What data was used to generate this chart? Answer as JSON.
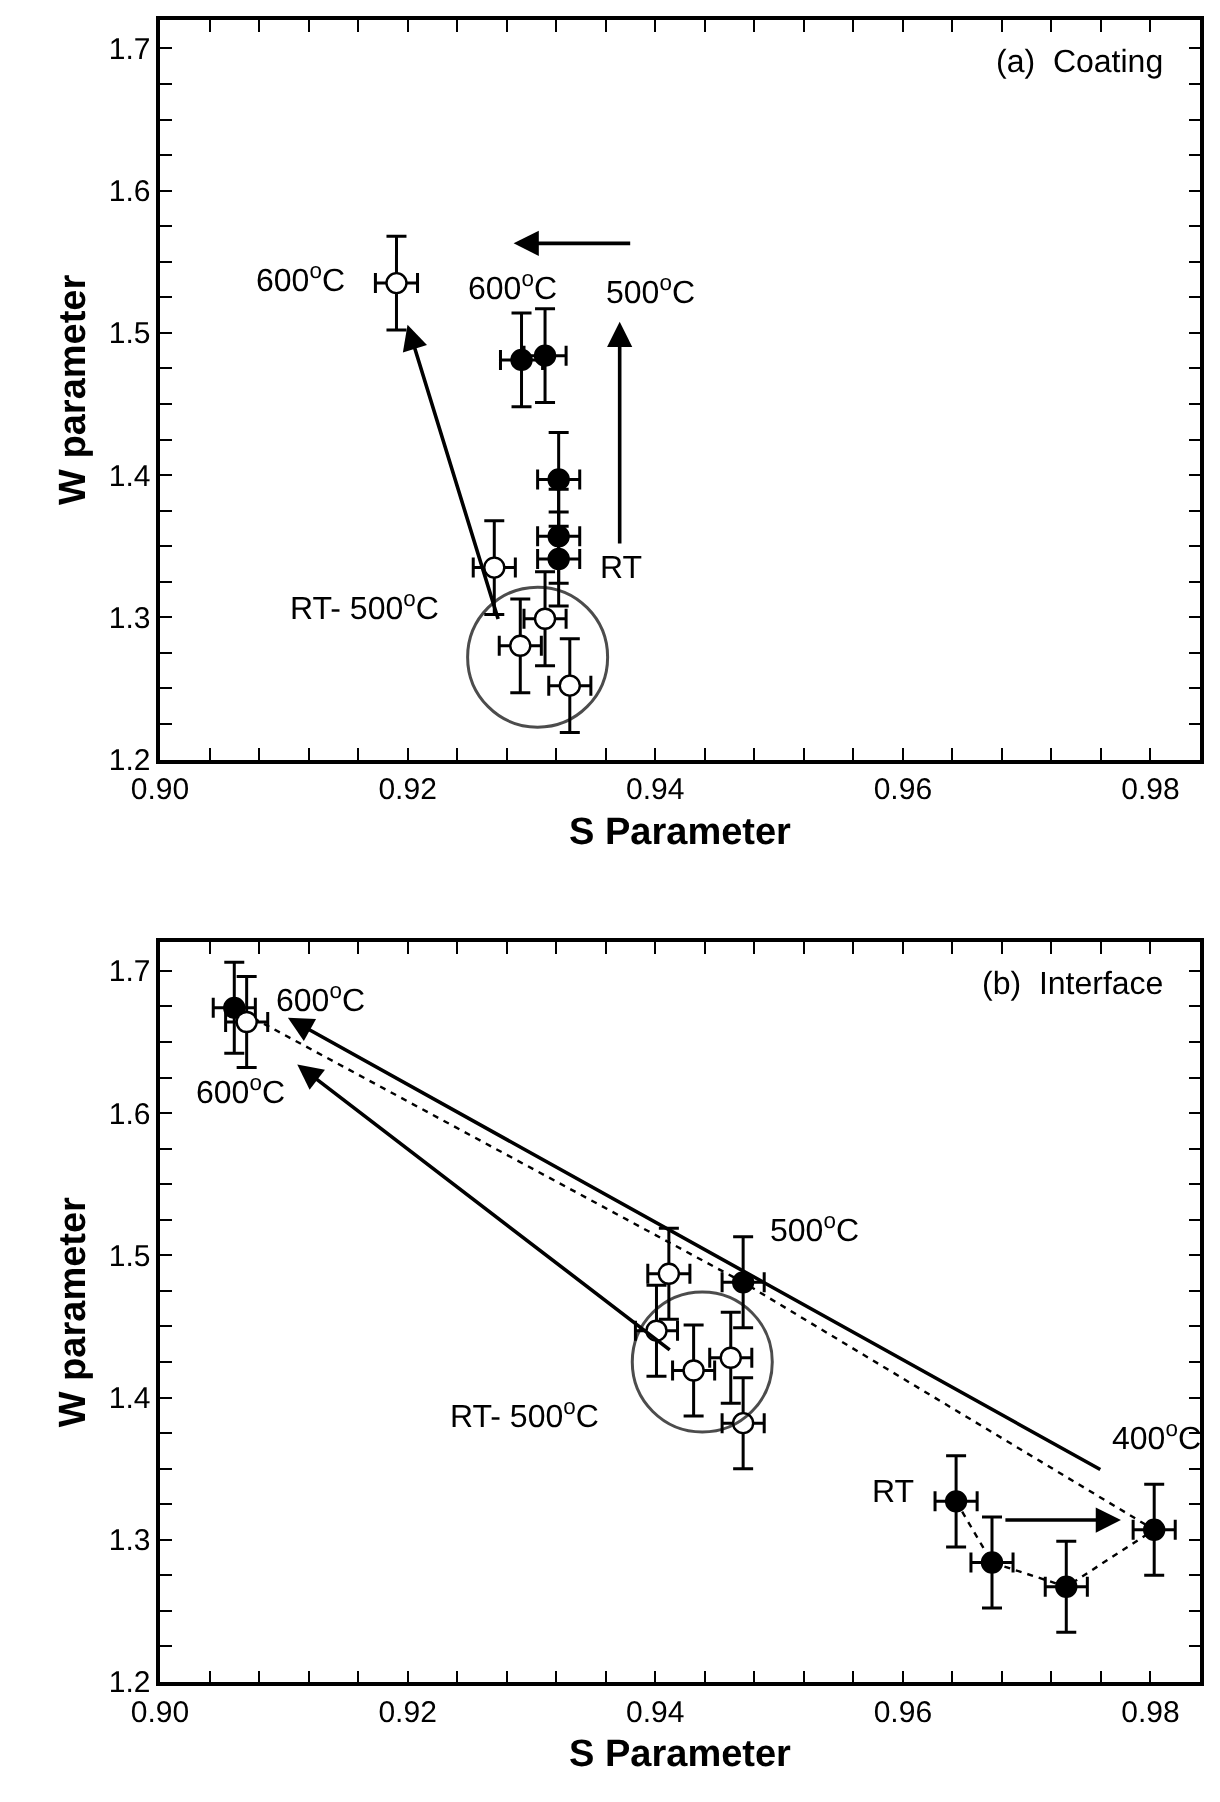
{
  "chart_data": [
    {
      "type": "scatter",
      "xlabel": "S Parameter",
      "ylabel": "W parameter",
      "xlim": [
        0.9,
        0.984
      ],
      "ylim": [
        1.2,
        1.72
      ],
      "xticks": [
        {
          "value": 0.9,
          "label": "0.90"
        },
        {
          "value": 0.904,
          "label": null
        },
        {
          "value": 0.908,
          "label": null
        },
        {
          "value": 0.912,
          "label": null
        },
        {
          "value": 0.916,
          "label": null
        },
        {
          "value": 0.92,
          "label": "0.92"
        },
        {
          "value": 0.924,
          "label": null
        },
        {
          "value": 0.928,
          "label": null
        },
        {
          "value": 0.932,
          "label": null
        },
        {
          "value": 0.936,
          "label": null
        },
        {
          "value": 0.94,
          "label": "0.94"
        },
        {
          "value": 0.944,
          "label": null
        },
        {
          "value": 0.948,
          "label": null
        },
        {
          "value": 0.952,
          "label": null
        },
        {
          "value": 0.956,
          "label": null
        },
        {
          "value": 0.96,
          "label": "0.96"
        },
        {
          "value": 0.964,
          "label": null
        },
        {
          "value": 0.968,
          "label": null
        },
        {
          "value": 0.972,
          "label": null
        },
        {
          "value": 0.976,
          "label": null
        },
        {
          "value": 0.98,
          "label": "0.98"
        }
      ],
      "yticks": [
        1.2,
        {
          "value": 1.225,
          "label": null
        },
        {
          "value": 1.25,
          "label": null
        },
        {
          "value": 1.275,
          "label": null
        },
        1.3,
        {
          "value": 1.325,
          "label": null
        },
        {
          "value": 1.35,
          "label": null
        },
        {
          "value": 1.375,
          "label": null
        },
        1.4,
        {
          "value": 1.425,
          "label": null
        },
        {
          "value": 1.45,
          "label": null
        },
        {
          "value": 1.475,
          "label": null
        },
        1.5,
        {
          "value": 1.525,
          "label": null
        },
        {
          "value": 1.55,
          "label": null
        },
        {
          "value": 1.575,
          "label": null
        },
        1.6,
        {
          "value": 1.625,
          "label": null
        },
        {
          "value": 1.65,
          "label": null
        },
        {
          "value": 1.675,
          "label": null
        },
        1.7
      ],
      "annotations": [
        "(a)  Coating",
        {
          "text": "600$^{o}$C",
          "x": 0.9191,
          "y": 1.535
        },
        {
          "text": "600$^{o}$C",
          "x": 0.9311,
          "y": 1.484
        },
        "500$^{o}$C",
        "RT",
        "RT- 500$^{o}$C"
      ],
      "series": [
        {
          "marker": "circle",
          "color": "#ffffff",
          "x": [
            0.9191,
            0.927,
            0.9311,
            0.9291,
            0.9331
          ],
          "values": [
            1.535,
            1.335,
            1.299,
            1.28,
            1.252
          ],
          "errors": [
            0.033,
            0.033,
            0.033,
            0.033,
            0.033
          ],
          "xerrors": [
            0.0017,
            0.0017,
            0.0017,
            0.0017,
            0.0017
          ]
        },
        {
          "marker": "circle",
          "color": "#000000",
          "x": [
            0.9292,
            0.9311,
            0.9322,
            0.9322,
            0.9322
          ],
          "values": [
            1.481,
            1.484,
            1.397,
            1.357,
            1.341
          ],
          "errors": [
            0.033,
            0.033,
            0.033,
            0.033,
            0.033
          ],
          "xerrors": [
            0.0017,
            0.0017,
            0.0017,
            0.0017,
            0.0017
          ]
        },
        {
          "type": "bubble",
          "marker": "circle",
          "color": "#000000",
          "x": [
            0.9305
          ],
          "values": [
            1.272
          ],
          "sizes": [
            1
          ]
        }
      ]
    },
    {
      "type": "scatter",
      "xlabel": "S Parameter",
      "ylabel": "W parameter",
      "xlim": [
        0.9,
        0.984
      ],
      "ylim": [
        1.2,
        1.72
      ],
      "xticks": [
        {
          "value": 0.9,
          "label": "0.90"
        },
        {
          "value": 0.904,
          "label": null
        },
        {
          "value": 0.908,
          "label": null
        },
        {
          "value": 0.912,
          "label": null
        },
        {
          "value": 0.916,
          "label": null
        },
        {
          "value": 0.92,
          "label": "0.92"
        },
        {
          "value": 0.924,
          "label": null
        },
        {
          "value": 0.928,
          "label": null
        },
        {
          "value": 0.932,
          "label": null
        },
        {
          "value": 0.936,
          "label": null
        },
        {
          "value": 0.94,
          "label": "0.94"
        },
        {
          "value": 0.944,
          "label": null
        },
        {
          "value": 0.948,
          "label": null
        },
        {
          "value": 0.952,
          "label": null
        },
        {
          "value": 0.956,
          "label": null
        },
        {
          "value": 0.96,
          "label": "0.96"
        },
        {
          "value": 0.964,
          "label": null
        },
        {
          "value": 0.968,
          "label": null
        },
        {
          "value": 0.972,
          "label": null
        },
        {
          "value": 0.976,
          "label": null
        },
        {
          "value": 0.98,
          "label": "0.98"
        }
      ],
      "yticks": [
        1.2,
        {
          "value": 1.225,
          "label": null
        },
        {
          "value": 1.25,
          "label": null
        },
        {
          "value": 1.275,
          "label": null
        },
        1.3,
        {
          "value": 1.325,
          "label": null
        },
        {
          "value": 1.35,
          "label": null
        },
        {
          "value": 1.375,
          "label": null
        },
        1.4,
        {
          "value": 1.425,
          "label": null
        },
        {
          "value": 1.45,
          "label": null
        },
        {
          "value": 1.475,
          "label": null
        },
        1.5,
        {
          "value": 1.525,
          "label": null
        },
        {
          "value": 1.55,
          "label": null
        },
        {
          "value": 1.575,
          "label": null
        },
        1.6,
        {
          "value": 1.625,
          "label": null
        },
        {
          "value": 1.65,
          "label": null
        },
        {
          "value": 1.675,
          "label": null
        },
        1.7
      ],
      "annotations": [
        "(b)  Interface",
        {
          "text": "600$^{o}$C",
          "x": 0.906,
          "y": 1.674
        },
        {
          "text": "600$^{o}$C",
          "x": 0.907,
          "y": 1.664
        },
        {
          "text": "500$^{o}$C",
          "x": 0.9471,
          "y": 1.481
        },
        {
          "text": "400$^{o}$C",
          "x": 0.9803,
          "y": 1.307
        },
        {
          "text": "RT",
          "x": 0.9643,
          "y": 1.327
        },
        "RT- 500$^{o}$C"
      ],
      "series": [
        {
          "type": "line",
          "marker": "circle",
          "line_style": "dotted",
          "color": "#000000",
          "x": [
            0.9643,
            0.9672,
            0.9732,
            0.9803,
            0.9471,
            0.906
          ],
          "values": [
            1.327,
            1.284,
            1.267,
            1.307,
            1.481,
            1.674
          ],
          "errors": [
            0.032,
            0.032,
            0.032,
            0.032,
            0.032,
            0.032
          ],
          "xerrors": [
            0.0017,
            0.0017,
            0.0017,
            0.0017,
            0.0017,
            0.0017
          ]
        },
        {
          "marker": "circle",
          "color": "#ffffff",
          "x": [
            0.907,
            0.9411,
            0.9401,
            0.9431,
            0.9461,
            0.9471
          ],
          "values": [
            1.664,
            1.487,
            1.447,
            1.419,
            1.428,
            1.382
          ],
          "errors": [
            0.032,
            0.032,
            0.032,
            0.032,
            0.032,
            0.032
          ],
          "xerrors": [
            0.0017,
            0.0017,
            0.0017,
            0.0017,
            0.0017,
            0.0017
          ]
        },
        {
          "type": "bubble",
          "marker": "circle",
          "color": "#000000",
          "x": [
            0.9438
          ],
          "values": [
            1.425
          ],
          "sizes": [
            1
          ]
        }
      ]
    }
  ]
}
